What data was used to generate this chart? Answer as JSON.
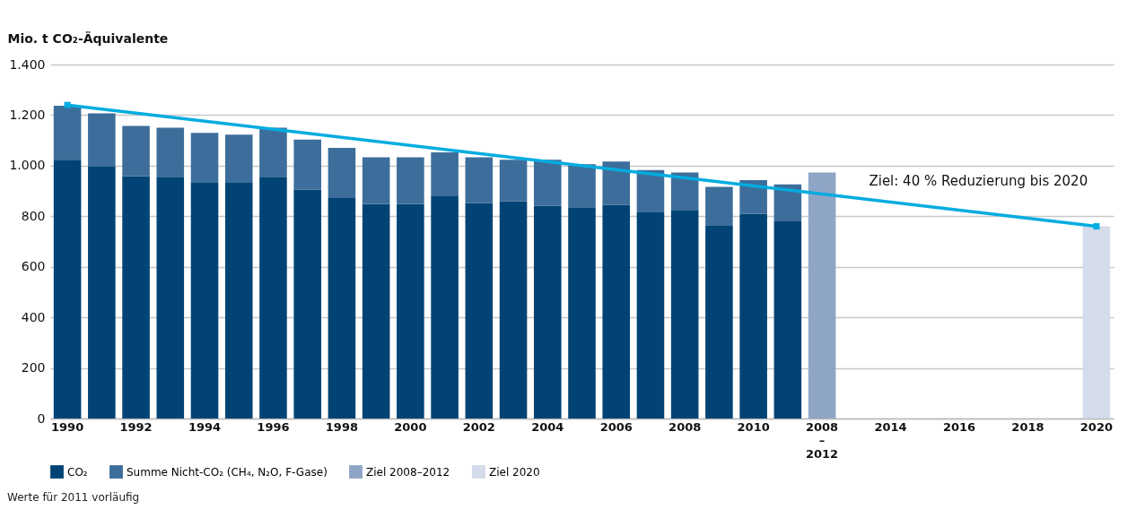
{
  "chart_data": {
    "type": "bar",
    "stacked": true,
    "ylabel": "Mio. t CO₂-Äquivalente",
    "categories": [
      "1990",
      null,
      "1992",
      null,
      "1994",
      null,
      "1996",
      null,
      "1998",
      null,
      "2000",
      null,
      "2002",
      null,
      "2004",
      null,
      "2006",
      null,
      "2008",
      null,
      "2010",
      null,
      "2008–2012",
      null,
      "2014",
      null,
      "2016",
      null,
      "2018",
      null,
      "2020"
    ],
    "series": [
      {
        "name": "CO₂",
        "color": "#004374",
        "values": [
          1023,
          996,
          959,
          953,
          932,
          932,
          953,
          906,
          872,
          849,
          849,
          879,
          852,
          859,
          842,
          836,
          845,
          815,
          822,
          762,
          809,
          782,
          null,
          null,
          null,
          null,
          null,
          null,
          null,
          null,
          null
        ]
      },
      {
        "name": "Summe Nicht-CO₂ (CH₄, N₂O, F-Gase)",
        "color": "#3d6e9b",
        "values": [
          214,
          211,
          198,
          197,
          198,
          191,
          197,
          197,
          198,
          184,
          184,
          174,
          181,
          164,
          181,
          170,
          171,
          168,
          151,
          154,
          134,
          144,
          null,
          null,
          null,
          null,
          null,
          null,
          null,
          null,
          null
        ]
      },
      {
        "name": "Ziel 2008–2012",
        "color": "#8fa5c6",
        "values": [
          null,
          null,
          null,
          null,
          null,
          null,
          null,
          null,
          null,
          null,
          null,
          null,
          null,
          null,
          null,
          null,
          null,
          null,
          null,
          null,
          null,
          null,
          973,
          null,
          null,
          null,
          null,
          null,
          null,
          null,
          null
        ]
      },
      {
        "name": "Ziel 2020",
        "color": "#d4dbeb",
        "values": [
          null,
          null,
          null,
          null,
          null,
          null,
          null,
          null,
          null,
          null,
          null,
          null,
          null,
          null,
          null,
          null,
          null,
          null,
          null,
          null,
          null,
          null,
          null,
          null,
          null,
          null,
          null,
          null,
          null,
          null,
          760
        ]
      },
      {
        "type": "line",
        "color": "#00ace0",
        "marker": "square",
        "values": [
          1240,
          null,
          null,
          null,
          null,
          null,
          null,
          null,
          null,
          null,
          null,
          null,
          null,
          null,
          null,
          null,
          null,
          null,
          null,
          null,
          null,
          null,
          null,
          null,
          null,
          null,
          null,
          null,
          null,
          null,
          760
        ]
      }
    ],
    "ylim": [
      0,
      1400
    ],
    "yticks": [
      0,
      200,
      400,
      600,
      800,
      {
        "value": 1000,
        "label": "1.000"
      },
      {
        "value": 1200,
        "label": "1.200"
      },
      {
        "value": 1400,
        "label": "1.400"
      }
    ],
    "grid": "y",
    "legend": "bottom",
    "annotations": [
      "Ziel: 40 % Reduzierung bis 2020",
      "Werte für 2011 vorläufig"
    ]
  }
}
